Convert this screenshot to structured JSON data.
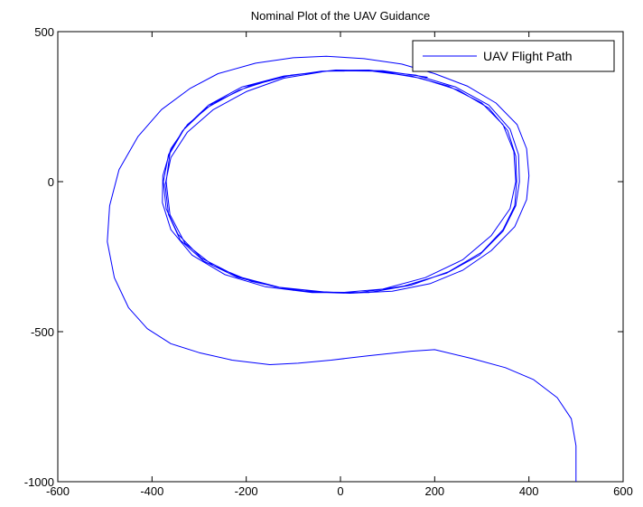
{
  "chart_data": {
    "type": "line",
    "title": "Nominal Plot of the UAV Guidance",
    "xlabel": "",
    "ylabel": "",
    "xlim": [
      -600,
      600
    ],
    "ylim": [
      -1000,
      500
    ],
    "xticks": [
      -600,
      -400,
      -200,
      0,
      200,
      400,
      600
    ],
    "yticks": [
      500,
      0,
      -500,
      -1000
    ],
    "xtick_labels": [
      "-600",
      "-400",
      "-200",
      "0",
      "200",
      "400",
      "600"
    ],
    "ytick_labels": [
      "500",
      "0",
      "-500",
      "-1000"
    ],
    "grid": false,
    "legend_position": "top-right",
    "series": [
      {
        "name": "UAV Flight Path",
        "color": "#0000ff",
        "points": [
          [
            500,
            -1000
          ],
          [
            500,
            -880
          ],
          [
            490,
            -790
          ],
          [
            460,
            -720
          ],
          [
            410,
            -660
          ],
          [
            350,
            -620
          ],
          [
            280,
            -590
          ],
          [
            200,
            -560
          ],
          [
            150,
            -565
          ],
          [
            60,
            -580
          ],
          [
            -20,
            -595
          ],
          [
            -90,
            -605
          ],
          [
            -150,
            -610
          ],
          [
            -230,
            -595
          ],
          [
            -300,
            -570
          ],
          [
            -360,
            -540
          ],
          [
            -410,
            -490
          ],
          [
            -450,
            -420
          ],
          [
            -480,
            -320
          ],
          [
            -495,
            -200
          ],
          [
            -490,
            -80
          ],
          [
            -470,
            40
          ],
          [
            -430,
            150
          ],
          [
            -380,
            240
          ],
          [
            -320,
            310
          ],
          [
            -260,
            360
          ],
          [
            -180,
            395
          ],
          [
            -100,
            413
          ],
          [
            -30,
            418
          ],
          [
            50,
            410
          ],
          [
            130,
            392
          ],
          [
            200,
            360
          ],
          [
            270,
            318
          ],
          [
            330,
            262
          ],
          [
            375,
            190
          ],
          [
            395,
            110
          ],
          [
            400,
            20
          ],
          [
            395,
            -60
          ],
          [
            370,
            -150
          ],
          [
            320,
            -230
          ],
          [
            260,
            -295
          ],
          [
            190,
            -340
          ],
          [
            110,
            -365
          ],
          [
            20,
            -372
          ],
          [
            -60,
            -368
          ],
          [
            -140,
            -350
          ],
          [
            -220,
            -318
          ],
          [
            -290,
            -265
          ],
          [
            -340,
            -195
          ],
          [
            -365,
            -110
          ],
          [
            -372,
            -10
          ],
          [
            -360,
            80
          ],
          [
            -325,
            165
          ],
          [
            -270,
            240
          ],
          [
            -200,
            300
          ],
          [
            -120,
            345
          ],
          [
            -30,
            368
          ],
          [
            60,
            370
          ],
          [
            150,
            352
          ],
          [
            230,
            318
          ],
          [
            300,
            262
          ],
          [
            345,
            190
          ],
          [
            368,
            100
          ],
          [
            372,
            0
          ],
          [
            360,
            -90
          ],
          [
            320,
            -180
          ],
          [
            260,
            -260
          ],
          [
            180,
            -320
          ],
          [
            90,
            -358
          ],
          [
            0,
            -370
          ],
          [
            -100,
            -362
          ],
          [
            -190,
            -332
          ],
          [
            -270,
            -280
          ],
          [
            -330,
            -205
          ],
          [
            -362,
            -110
          ],
          [
            -370,
            0
          ],
          [
            -362,
            95
          ],
          [
            -330,
            180
          ],
          [
            -280,
            255
          ],
          [
            -210,
            315
          ],
          [
            -120,
            352
          ],
          [
            -20,
            370
          ],
          [
            80,
            368
          ],
          [
            170,
            345
          ],
          [
            250,
            305
          ],
          [
            315,
            245
          ],
          [
            355,
            170
          ],
          [
            372,
            85
          ],
          [
            374,
            0
          ],
          [
            370,
            -80
          ],
          [
            345,
            -160
          ],
          [
            300,
            -235
          ],
          [
            230,
            -300
          ],
          [
            150,
            -345
          ],
          [
            60,
            -370
          ],
          [
            -30,
            -368
          ],
          [
            -130,
            -352
          ],
          [
            -220,
            -315
          ],
          [
            -295,
            -255
          ],
          [
            -345,
            -175
          ],
          [
            -370,
            -90
          ],
          [
            -376,
            0
          ],
          [
            -365,
            90
          ],
          [
            -335,
            170
          ],
          [
            -285,
            245
          ],
          [
            -215,
            305
          ],
          [
            -130,
            348
          ],
          [
            -40,
            368
          ],
          [
            60,
            372
          ],
          [
            160,
            355
          ],
          [
            245,
            315
          ],
          [
            315,
            255
          ],
          [
            360,
            175
          ],
          [
            378,
            90
          ],
          [
            380,
            0
          ],
          [
            372,
            -80
          ],
          [
            345,
            -165
          ],
          [
            295,
            -245
          ],
          [
            225,
            -305
          ],
          [
            135,
            -348
          ],
          [
            40,
            -370
          ],
          [
            -60,
            -370
          ],
          [
            -160,
            -350
          ],
          [
            -245,
            -310
          ],
          [
            -315,
            -245
          ],
          [
            -360,
            -160
          ],
          [
            -378,
            -70
          ],
          [
            -377,
            20
          ],
          [
            -360,
            110
          ],
          [
            -325,
            190
          ],
          [
            -270,
            262
          ],
          [
            -195,
            318
          ],
          [
            -105,
            355
          ],
          [
            -10,
            372
          ],
          [
            90,
            370
          ],
          [
            185,
            348
          ]
        ]
      }
    ]
  }
}
